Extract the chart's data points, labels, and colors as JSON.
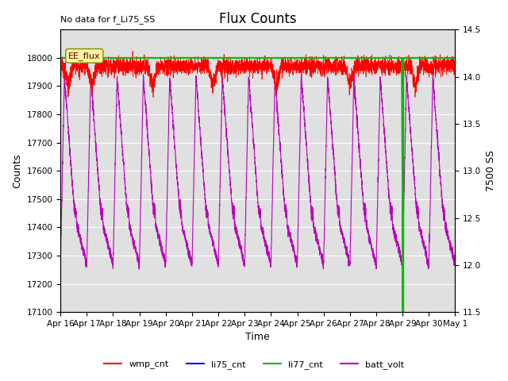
{
  "title": "Flux Counts",
  "note": "No data for f_Li75_SS",
  "xlabel": "Time",
  "ylabel_left": "Counts",
  "ylabel_right": "7500 SS",
  "ylim_left": [
    17100,
    18100
  ],
  "ylim_right": [
    11.5,
    14.5
  ],
  "background_color": "#ffffff",
  "plot_bg_color": "#e0e0e0",
  "x_ticks_labels": [
    "Apr 16",
    "Apr 17",
    "Apr 18",
    "Apr 19",
    "Apr 20",
    "Apr 21",
    "Apr 22",
    "Apr 23",
    "Apr 24",
    "Apr 25",
    "Apr 26",
    "Apr 27",
    "Apr 28",
    "Apr 29",
    "Apr 30",
    "May 1"
  ],
  "wmp_mean": 17970,
  "wmp_noise_small": 15,
  "wmp_noise_large": 60,
  "wmp_color": "#ff0000",
  "li75_color": "#0000ff",
  "li77_color": "#00bb00",
  "batt_color": "#bb00bb",
  "ee_flux_label": "EE_flux",
  "legend_items": [
    "wmp_cnt",
    "li75_cnt",
    "li77_cnt",
    "batt_volt"
  ],
  "title_fontsize": 12,
  "axis_fontsize": 9,
  "tick_fontsize": 7.5,
  "note_fontsize": 8
}
